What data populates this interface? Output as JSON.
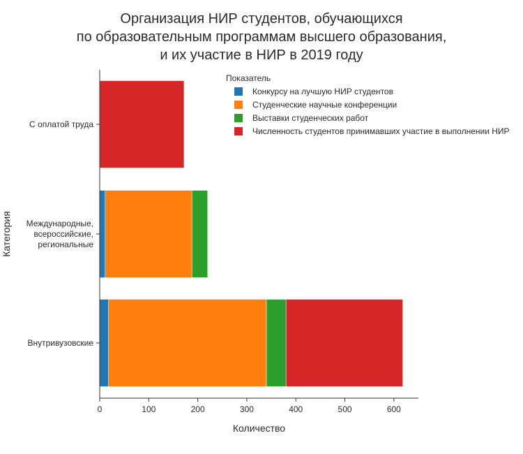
{
  "chart_data": {
    "type": "bar",
    "orientation": "horizontal",
    "stacked": true,
    "title_lines": [
      "Организация НИР студентов, обучающихся",
      "по образовательным программам высшего образования,",
      "и их участие в НИР в 2019 году"
    ],
    "xlabel": "Количество",
    "ylabel": "Категория",
    "xlim": [
      0,
      650
    ],
    "x_ticks": [
      0,
      100,
      200,
      300,
      400,
      500,
      600
    ],
    "grid": false,
    "legend_title": "Показатель",
    "legend_position": "top-right",
    "categories": [
      {
        "label_lines": [
          "С оплатой труда"
        ]
      },
      {
        "label_lines": [
          "Международные,",
          "всероссийские,",
          "региональные"
        ]
      },
      {
        "label_lines": [
          "Внутривузовские"
        ]
      }
    ],
    "series": [
      {
        "name": "Конкурсу на лучшую НИР студентов",
        "color": "#1f77b4",
        "values": [
          0,
          11,
          18
        ]
      },
      {
        "name": "Студенческие научные конференции",
        "color": "#ff7f0e",
        "values": [
          0,
          177,
          322
        ]
      },
      {
        "name": "Выставки студенческих работ",
        "color": "#2ca02c",
        "values": [
          0,
          32,
          40
        ]
      },
      {
        "name": "Численность студентов принимавших участие в выполнении НИР",
        "color": "#d62728",
        "values": [
          172,
          0,
          238
        ]
      }
    ]
  }
}
